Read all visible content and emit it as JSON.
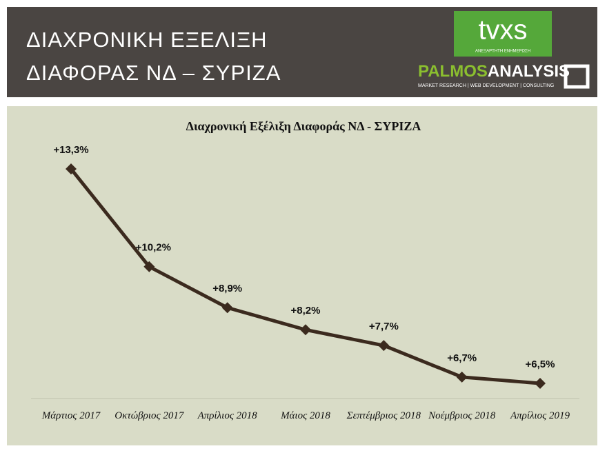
{
  "header": {
    "title_lines": [
      "ΔΙΑΧΡΟΝΙΚΗ ΕΞΕΛΙΞΗ",
      "ΔΙΑΦΟΡΑΣ ΝΔ – ΣΥΡΙΖΑ"
    ],
    "logo_tvxs": "tvxs",
    "logo_tvxs_tagline": "ΑΝΕΞΑΡΤΗΤΗ ΕΝΗΜΕΡΩΣΗ",
    "logo_palmos_a": "PALMOS",
    "logo_palmos_b": "ANALYSIS",
    "logo_palmos_tagline": "MARKET RESEARCH | WEB DEVELOPMENT | CONSULTING"
  },
  "chart_data": {
    "type": "line",
    "title": "Διαχρονική Εξέλιξη Διαφοράς ΝΔ - ΣΥΡΙΖΑ",
    "categories": [
      "Μάρτιος 2017",
      "Οκτώβριος 2017",
      "Απρίλιος 2018",
      "Μάιος 2018",
      "Σεπτέμβριος 2018",
      "Νοέμβριος 2018",
      "Απρίλιος 2019"
    ],
    "values": [
      13.3,
      10.2,
      8.9,
      8.2,
      7.7,
      6.7,
      6.5
    ],
    "value_labels": [
      "+13,3%",
      "+10,2%",
      "+8,9%",
      "+8,2%",
      "+7,7%",
      "+6,7%",
      "+6,5%"
    ],
    "color": "#3b2a1e"
  }
}
